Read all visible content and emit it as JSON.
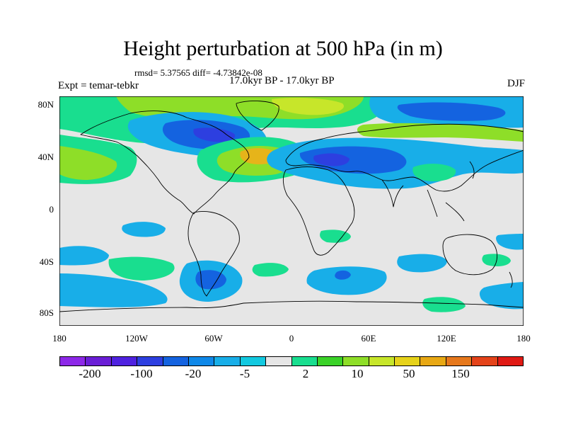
{
  "plot": {
    "title": "Height perturbation at 500 hPa (in m)",
    "stats": "rmsd= 5.37565 diff= -4.73842e-08",
    "period": "17.0kyr BP - 17.0kyr BP",
    "experiment": "Expt = temar-tebkr",
    "season": "DJF"
  },
  "axes": {
    "lat_labels": [
      "80N",
      "40N",
      "0",
      "40S",
      "80S"
    ],
    "lon_labels": [
      "180",
      "120W",
      "60W",
      "0",
      "60E",
      "120E",
      "180"
    ]
  },
  "colorbar": {
    "colors": [
      "#8d28e8",
      "#6a1ed6",
      "#4f22e0",
      "#2d3fe0",
      "#1463e0",
      "#0f88e8",
      "#18aee8",
      "#12c9e0",
      "#e6e6e6",
      "#19de8f",
      "#3ad228",
      "#8ede28",
      "#c7e62a",
      "#e6d21a",
      "#e8a814",
      "#e6781c",
      "#e4431a",
      "#e01a14"
    ],
    "tick_labels": [
      "-200",
      "-100",
      "-20",
      "-5",
      "2",
      "10",
      "50",
      "150"
    ],
    "palette": {
      "neutral": "#e6e6e6",
      "cyan": "#18aee8",
      "blue": "#1463e0",
      "deep_blue": "#2d3fe0",
      "green": "#19de8f",
      "yellowgreen": "#8ede28",
      "yellow": "#c7e62a",
      "orange": "#e6b41a"
    }
  }
}
